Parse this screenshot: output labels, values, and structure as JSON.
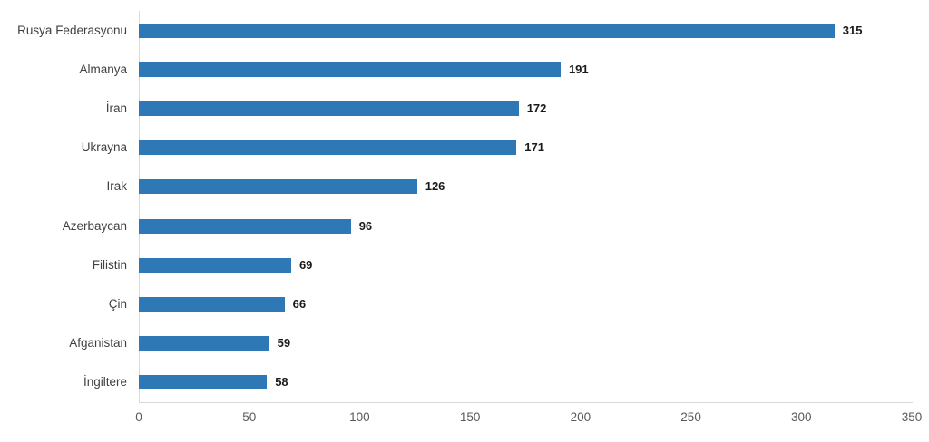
{
  "chart_data": {
    "type": "bar",
    "orientation": "horizontal",
    "title": "",
    "xlabel": "",
    "ylabel": "",
    "categories": [
      "Rusya Federasyonu",
      "Almanya",
      "İran",
      "Ukrayna",
      "Irak",
      "Azerbaycan",
      "Filistin",
      "Çin",
      "Afganistan",
      "İngiltere"
    ],
    "values": [
      315,
      191,
      172,
      171,
      126,
      96,
      69,
      66,
      59,
      58
    ],
    "value_labels_shown": true,
    "xlim": [
      0,
      350
    ],
    "xticks": [
      0,
      50,
      100,
      150,
      200,
      250,
      300,
      350
    ],
    "grid": false,
    "legend": "none",
    "colors": {
      "bar_fill": "#2E79B5",
      "axis_line": "#D9D9D9",
      "category_label": "#404040",
      "tick_label": "#595959",
      "value_label": "#1A1A1A",
      "background": "#FFFFFF"
    }
  }
}
